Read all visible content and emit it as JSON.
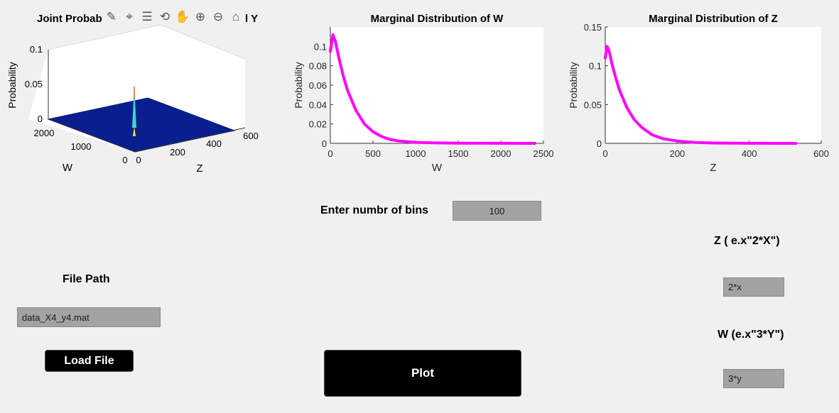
{
  "joint_plot": {
    "title": "Joint Probab",
    "title_tail": "l Y",
    "xlabel": "W",
    "ylabel": "Z",
    "zlabel": "Probability",
    "x_ticks": [
      "2000",
      "1000",
      "0"
    ],
    "y_ticks": [
      "0",
      "200",
      "400",
      "600"
    ],
    "z_ticks": [
      "0.1",
      "0.05",
      "0"
    ]
  },
  "toolbar": {
    "icons": [
      "brush-icon",
      "data-tip-icon",
      "legend-icon",
      "rotate-icon",
      "pan-icon",
      "zoom-in-icon",
      "zoom-out-icon",
      "home-icon"
    ]
  },
  "chart_data": [
    {
      "type": "line",
      "title": "Marginal Distribution of W",
      "xlabel": "W",
      "ylabel": "Probability",
      "xlim": [
        0,
        2500
      ],
      "ylim": [
        0,
        0.12
      ],
      "x_ticks": [
        "0",
        "500",
        "1000",
        "1500",
        "2000",
        "2500"
      ],
      "y_ticks": [
        "0",
        "0.02",
        "0.04",
        "0.06",
        "0.08",
        "0.1"
      ],
      "color": "#ff00ff",
      "x": [
        0,
        30,
        60,
        100,
        150,
        200,
        300,
        400,
        500,
        600,
        700,
        800,
        1000,
        1200,
        1500,
        2000,
        2400
      ],
      "values": [
        0.095,
        0.112,
        0.105,
        0.088,
        0.07,
        0.055,
        0.034,
        0.02,
        0.012,
        0.007,
        0.004,
        0.0025,
        0.001,
        0.0005,
        0.0002,
        0.0001,
        0.0
      ]
    },
    {
      "type": "line",
      "title": "Marginal Distribution of Z",
      "xlabel": "Z",
      "ylabel": "Probability",
      "xlim": [
        0,
        600
      ],
      "ylim": [
        0,
        0.15
      ],
      "x_ticks": [
        "0",
        "200",
        "400",
        "600"
      ],
      "y_ticks": [
        "0",
        "0.05",
        "0.1",
        "0.15"
      ],
      "color": "#ff00ff",
      "x": [
        0,
        5,
        10,
        20,
        30,
        40,
        60,
        80,
        100,
        130,
        160,
        200,
        250,
        300,
        400,
        530
      ],
      "values": [
        0.11,
        0.125,
        0.12,
        0.1,
        0.083,
        0.068,
        0.046,
        0.031,
        0.021,
        0.011,
        0.006,
        0.003,
        0.0012,
        0.0005,
        0.0001,
        0.0
      ]
    }
  ],
  "bins": {
    "label": "Enter numbr of bins",
    "value": "100"
  },
  "z_expr": {
    "label": "Z  ( e.x\"2*X\")",
    "value": "2*x"
  },
  "w_expr": {
    "label": "W (e.x\"3*Y\")",
    "value": "3*y"
  },
  "file": {
    "label": "File Path",
    "value": "data_X4_y4.mat",
    "load_label": "Load File"
  },
  "plot_button": {
    "label": "Plot"
  }
}
